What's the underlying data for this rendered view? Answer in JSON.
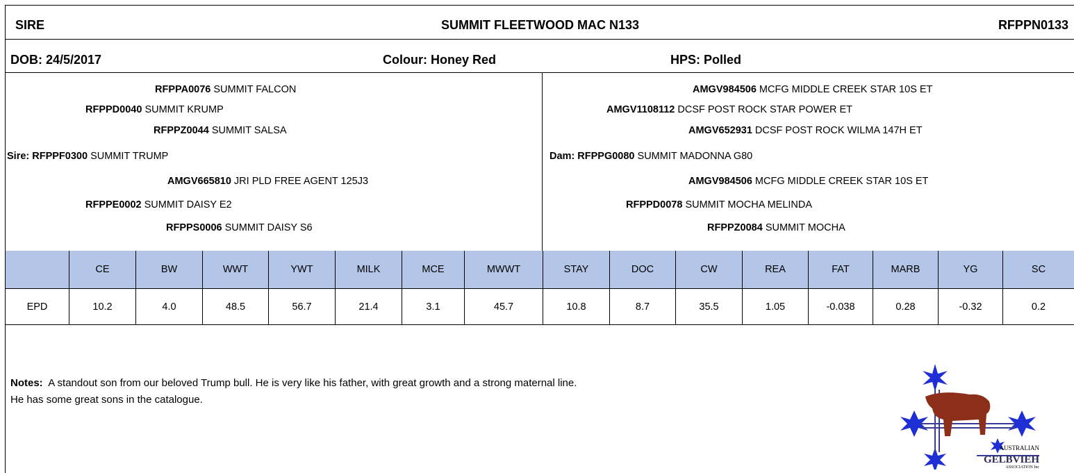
{
  "header": {
    "label": "SIRE",
    "name": "SUMMIT FLEETWOOD MAC N133",
    "id": "RFPPN0133"
  },
  "info": {
    "dob": "DOB: 24/5/2017",
    "colour": "Colour: Honey Red",
    "hps": "HPS: Polled"
  },
  "pedigree": {
    "sire_side": [
      {
        "id": "RFPPA0076",
        "name": "SUMMIT FALCON"
      },
      {
        "id": "RFPPD0040",
        "name": "SUMMIT KRUMP"
      },
      {
        "id": "RFPPZ0044",
        "name": "SUMMIT SALSA"
      },
      {
        "id": "Sire: RFPPF0300",
        "name": "SUMMIT TRUMP"
      },
      {
        "id": "AMGV665810",
        "name": "JRI PLD FREE AGENT 125J3"
      },
      {
        "id": "RFPPE0002",
        "name": "SUMMIT DAISY E2"
      },
      {
        "id": "RFPPS0006",
        "name": "SUMMIT DAISY S6"
      }
    ],
    "dam_side": [
      {
        "id": "AMGV984506",
        "name": "MCFG MIDDLE CREEK STAR 10S ET"
      },
      {
        "id": "AMGV1108112",
        "name": "DCSF POST ROCK STAR POWER ET"
      },
      {
        "id": "AMGV652931",
        "name": "DCSF POST ROCK WILMA 147H ET"
      },
      {
        "id": "Dam: RFPPG0080",
        "name": "SUMMIT MADONNA G80"
      },
      {
        "id": "AMGV984506",
        "name": "MCFG MIDDLE CREEK STAR 10S ET"
      },
      {
        "id": "RFPPD0078",
        "name": "SUMMIT MOCHA MELINDA"
      },
      {
        "id": "RFPPZ0084",
        "name": "SUMMIT MOCHA"
      }
    ]
  },
  "table": {
    "columns": [
      "CE",
      "BW",
      "WWT",
      "YWT",
      "MILK",
      "MCE",
      "MWWT",
      "STAY",
      "DOC",
      "CW",
      "REA",
      "FAT",
      "MARB",
      "YG",
      "SC"
    ],
    "row_label": "EPD",
    "values": [
      "10.2",
      "4.0",
      "48.5",
      "56.7",
      "21.4",
      "3.1",
      "45.7",
      "10.8",
      "8.7",
      "35.5",
      "1.05",
      "-0.038",
      "0.28",
      "-0.32",
      "0.2"
    ]
  },
  "notes": {
    "label": "Notes:",
    "lines": [
      "A standout son from our beloved Trump bull. He is very like his father, with great growth and a strong maternal line.",
      "He has some great sons in the catalogue."
    ]
  },
  "logo": {
    "line1": "AUSTRALIAN",
    "line2": "GELBVIEH",
    "line3": "ASSOCIATION Inc"
  }
}
